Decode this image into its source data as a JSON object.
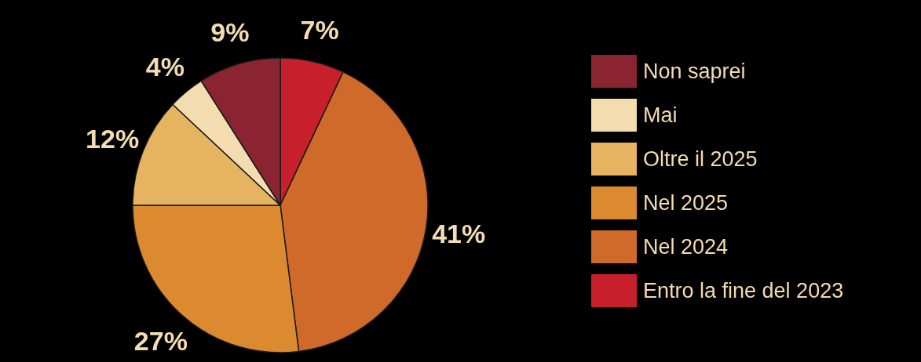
{
  "chart_data": {
    "type": "pie",
    "categories": [
      "Entro la fine del 2023",
      "Nel 2024",
      "Nel 2025",
      "Oltre il 2025",
      "Mai",
      "Non saprei"
    ],
    "values": [
      7,
      41,
      27,
      12,
      4,
      9
    ],
    "value_labels": [
      "7%",
      "41%",
      "27%",
      "12%",
      "4%",
      "9%"
    ],
    "colors": [
      "#c8202a",
      "#d06a2a",
      "#dc8a30",
      "#e6b460",
      "#f3dcb0",
      "#8a2430"
    ],
    "legend": "right"
  }
}
